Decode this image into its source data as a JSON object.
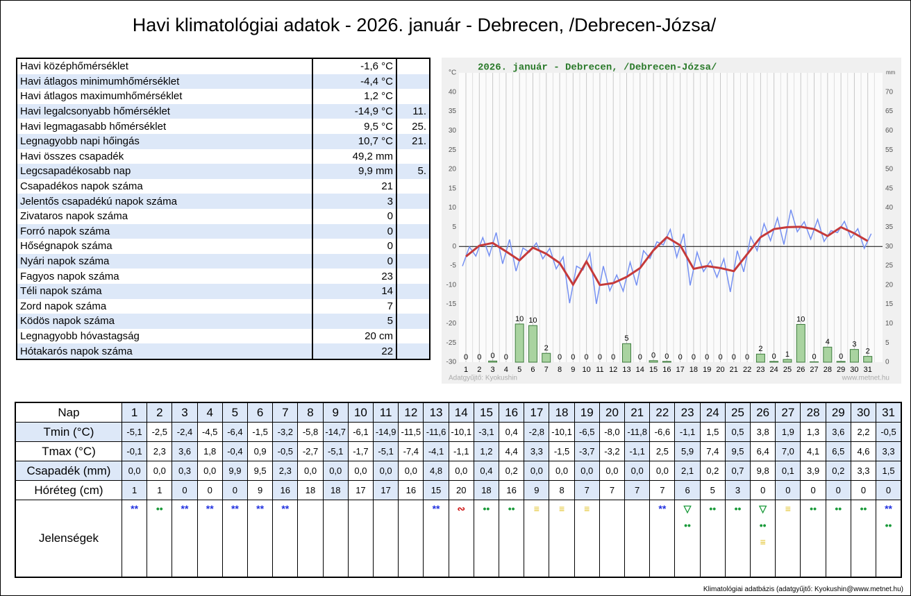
{
  "title": "Havi klimatológiai adatok - 2026. január - Debrecen, /Debrecen-Józsa/",
  "summary": {
    "rows": [
      {
        "label": "Havi középhőmérséklet",
        "value": "-1,6 °C"
      },
      {
        "label": "Havi átlagos minimumhőmérséklet",
        "value": "-4,4 °C"
      },
      {
        "label": "Havi átlagos maximumhőmérséklet",
        "value": "1,2 °C"
      },
      {
        "label": "Havi legalcsonyabb hőmérséklet",
        "value": "-14,9 °C",
        "day": "11."
      },
      {
        "label": "Havi legmagasabb hőmérséklet",
        "value": "9,5 °C",
        "day": "25."
      },
      {
        "label": "Legnagyobb napi hőingás",
        "value": "10,7 °C",
        "day": "21."
      },
      {
        "label": "Havi összes csapadék",
        "value": "49,2 mm"
      },
      {
        "label": "Legcsapadékosabb nap",
        "value": "9,9 mm",
        "day": "5."
      },
      {
        "label": "Csapadékos napok száma",
        "value": "21"
      },
      {
        "label": "Jelentős csapadékú napok száma",
        "value": "3"
      },
      {
        "label": "Zivataros napok száma",
        "value": "0"
      },
      {
        "label": "Forró napok száma",
        "value": "0"
      },
      {
        "label": "Hőségnapok száma",
        "value": "0"
      },
      {
        "label": "Nyári napok száma",
        "value": "0"
      },
      {
        "label": "Fagyos napok száma",
        "value": "23"
      },
      {
        "label": "Téli napok száma",
        "value": "14"
      },
      {
        "label": "Zord napok száma",
        "value": "7"
      },
      {
        "label": "Ködös napok száma",
        "value": "5"
      },
      {
        "label": "Legnagyobb hóvastagság",
        "value": "20 cm"
      },
      {
        "label": "Hótakarós napok száma",
        "value": "22"
      }
    ]
  },
  "chart_data": {
    "type": "line",
    "title": "2026. január - Debrecen, /Debrecen-Józsa/",
    "y_unit": "°C",
    "y2_unit": "mm",
    "credit_left": "Adatgyűjtő: Kyokushin",
    "credit_right": "www.metnet.hu",
    "categories": [
      1,
      2,
      3,
      4,
      5,
      6,
      7,
      8,
      9,
      10,
      11,
      12,
      13,
      14,
      15,
      16,
      17,
      18,
      19,
      20,
      21,
      22,
      23,
      24,
      25,
      26,
      27,
      28,
      29,
      30,
      31
    ],
    "ylim": [
      -30,
      45
    ],
    "yticks": [
      -30,
      -25,
      -20,
      -15,
      -10,
      -5,
      0,
      5,
      10,
      15,
      20,
      25,
      30,
      35,
      40
    ],
    "y2lim": [
      0,
      75
    ],
    "y2ticks": [
      0,
      5,
      10,
      15,
      20,
      25,
      30,
      35,
      40,
      45,
      50,
      55,
      60,
      65,
      70
    ],
    "grid": true,
    "series": [
      {
        "type": "line",
        "color": "#7590f2",
        "values": [
          -5.1,
          -2.5,
          -2.4,
          -4.5,
          -6.4,
          -1.5,
          -3.2,
          -5.8,
          -14.7,
          -6.1,
          -14.9,
          -11.5,
          -11.6,
          -10.1,
          -3.1,
          0.4,
          -2.8,
          -10.1,
          -6.5,
          -8.0,
          -11.8,
          -6.6,
          -1.1,
          1.5,
          0.5,
          3.8,
          1.9,
          1.3,
          3.6,
          2.2,
          -0.5
        ]
      },
      {
        "type": "line",
        "color": "#7590f2",
        "values": [
          -0.1,
          2.3,
          3.6,
          1.8,
          -0.4,
          0.9,
          -0.5,
          -2.7,
          -5.1,
          -1.7,
          -5.1,
          -7.4,
          -4.1,
          -1.1,
          1.2,
          4.4,
          3.3,
          -1.5,
          -3.7,
          -3.2,
          -1.1,
          2.5,
          5.9,
          7.4,
          9.5,
          6.4,
          7.0,
          4.1,
          6.5,
          4.6,
          3.3
        ]
      },
      {
        "type": "line",
        "color": "#c53a3a",
        "values": [
          -2.6,
          0.2,
          0.9,
          -1.3,
          -3.6,
          -0.3,
          -1.9,
          -4.3,
          -9.9,
          -3.9,
          -10.0,
          -9.5,
          -7.9,
          -5.6,
          -1.0,
          2.4,
          0.3,
          -5.8,
          -5.1,
          -5.6,
          -6.4,
          -2.0,
          2.4,
          4.5,
          5.0,
          5.1,
          4.5,
          2.7,
          5.0,
          3.4,
          1.4
        ]
      },
      {
        "type": "bar",
        "axis": "y2",
        "color": "#a9d3a0",
        "values": [
          0.0,
          0.0,
          0.3,
          0.0,
          9.9,
          9.5,
          2.3,
          0.0,
          0.0,
          0.0,
          0.0,
          0.0,
          4.8,
          0.0,
          0.4,
          0.2,
          0.0,
          0.0,
          0.0,
          0.0,
          0.0,
          0.0,
          2.1,
          0.2,
          0.7,
          9.8,
          0.1,
          3.9,
          0.2,
          3.3,
          1.5
        ],
        "value_labels": [
          "0",
          "0",
          "0",
          "0",
          "10",
          "10",
          "2",
          "0",
          "0",
          "0",
          "0",
          "0",
          "5",
          "0",
          "0",
          "0",
          "0",
          "0",
          "0",
          "0",
          "0",
          "0",
          "2",
          "0",
          "1",
          "10",
          "0",
          "4",
          "0",
          "3",
          "2"
        ]
      }
    ]
  },
  "daily": {
    "header": "Nap",
    "rows": [
      {
        "label": "Tmin (°C)",
        "values": [
          "-5,1",
          "-2,5",
          "-2,4",
          "-4,5",
          "-6,4",
          "-1,5",
          "-3,2",
          "-5,8",
          "-14,7",
          "-6,1",
          "-14,9",
          "-11,5",
          "-11,6",
          "-10,1",
          "-3,1",
          "0,4",
          "-2,8",
          "-10,1",
          "-6,5",
          "-8,0",
          "-11,8",
          "-6,6",
          "-1,1",
          "1,5",
          "0,5",
          "3,8",
          "1,9",
          "1,3",
          "3,6",
          "2,2",
          "-0,5"
        ]
      },
      {
        "label": "Tmax (°C)",
        "values": [
          "-0,1",
          "2,3",
          "3,6",
          "1,8",
          "-0,4",
          "0,9",
          "-0,5",
          "-2,7",
          "-5,1",
          "-1,7",
          "-5,1",
          "-7,4",
          "-4,1",
          "-1,1",
          "1,2",
          "4,4",
          "3,3",
          "-1,5",
          "-3,7",
          "-3,2",
          "-1,1",
          "2,5",
          "5,9",
          "7,4",
          "9,5",
          "6,4",
          "7,0",
          "4,1",
          "6,5",
          "4,6",
          "3,3"
        ]
      },
      {
        "label": "Csapadék (mm)",
        "values": [
          "0,0",
          "0,0",
          "0,3",
          "0,0",
          "9,9",
          "9,5",
          "2,3",
          "0,0",
          "0,0",
          "0,0",
          "0,0",
          "0,0",
          "4,8",
          "0,0",
          "0,4",
          "0,2",
          "0,0",
          "0,0",
          "0,0",
          "0,0",
          "0,0",
          "0,0",
          "2,1",
          "0,2",
          "0,7",
          "9,8",
          "0,1",
          "3,9",
          "0,2",
          "3,3",
          "1,5"
        ]
      },
      {
        "label": "Hóréteg (cm)",
        "values": [
          "1",
          "1",
          "0",
          "0",
          "0",
          "9",
          "16",
          "18",
          "18",
          "17",
          "17",
          "16",
          "15",
          "20",
          "18",
          "16",
          "9",
          "8",
          "7",
          "7",
          "7",
          "7",
          "6",
          "5",
          "3",
          "0",
          "0",
          "0",
          "0",
          "0",
          "0"
        ]
      }
    ],
    "phenomena_label": "Jelenségek",
    "phenomena": [
      [
        {
          "symbol": "**",
          "color": "#2030e0"
        }
      ],
      [
        {
          "symbol": "••",
          "color": "#1a9a3a"
        }
      ],
      [
        {
          "symbol": "**",
          "color": "#2030e0"
        }
      ],
      [
        {
          "symbol": "**",
          "color": "#2030e0"
        }
      ],
      [
        {
          "symbol": "**",
          "color": "#2030e0"
        }
      ],
      [
        {
          "symbol": "**",
          "color": "#2030e0"
        }
      ],
      [
        {
          "symbol": "**",
          "color": "#2030e0"
        }
      ],
      [],
      [],
      [],
      [],
      [],
      [
        {
          "symbol": "**",
          "color": "#2030e0"
        }
      ],
      [
        {
          "symbol": "∾",
          "color": "#d02020"
        }
      ],
      [
        {
          "symbol": "••",
          "color": "#1a9a3a"
        }
      ],
      [
        {
          "symbol": "••",
          "color": "#1a9a3a"
        }
      ],
      [
        {
          "symbol": "≡",
          "color": "#e0c020"
        }
      ],
      [
        {
          "symbol": "≡",
          "color": "#e0c020"
        }
      ],
      [
        {
          "symbol": "≡",
          "color": "#e0c020"
        }
      ],
      [],
      [],
      [
        {
          "symbol": "**",
          "color": "#2030e0"
        }
      ],
      [
        {
          "symbol": "▽",
          "color": "#1a9a3a"
        },
        {
          "symbol": "••",
          "color": "#1a9a3a"
        }
      ],
      [
        {
          "symbol": "••",
          "color": "#1a9a3a"
        }
      ],
      [
        {
          "symbol": "••",
          "color": "#1a9a3a"
        }
      ],
      [
        {
          "symbol": "▽",
          "color": "#1a9a3a"
        },
        {
          "symbol": "••",
          "color": "#1a9a3a"
        },
        {
          "symbol": "≡",
          "color": "#e0c020"
        }
      ],
      [
        {
          "symbol": "≡",
          "color": "#e0c020"
        }
      ],
      [
        {
          "symbol": "••",
          "color": "#1a9a3a"
        }
      ],
      [
        {
          "symbol": "••",
          "color": "#1a9a3a"
        }
      ],
      [
        {
          "symbol": "••",
          "color": "#1a9a3a"
        }
      ],
      [
        {
          "symbol": "**",
          "color": "#2030e0"
        },
        {
          "symbol": "••",
          "color": "#1a9a3a"
        }
      ]
    ]
  },
  "footer": "Klimatológiai adatbázis (adatgyűjtő: Kyokushin@www.metnet.hu)"
}
